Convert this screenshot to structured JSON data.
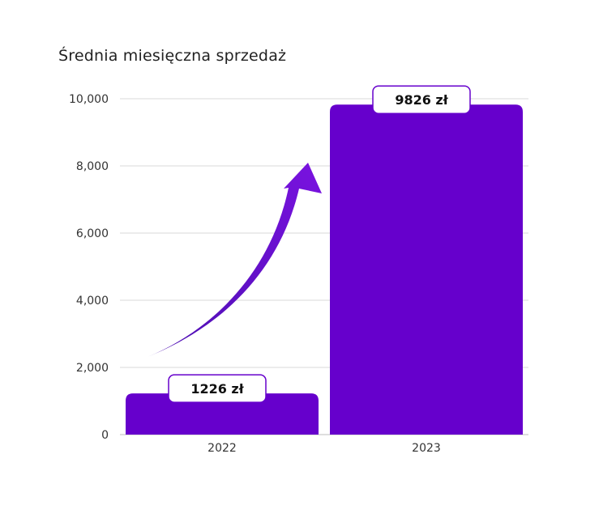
{
  "chart_data": {
    "type": "bar",
    "title": "Średnia miesięczna sprzedaż",
    "xlabel": "",
    "ylabel": "",
    "categories": [
      "2022",
      "2023"
    ],
    "values": [
      1226,
      9826
    ],
    "value_labels": [
      "1226 zł",
      "9826 zł"
    ],
    "ylim": [
      0,
      10000
    ],
    "yticks": [
      0,
      2000,
      4000,
      6000,
      8000,
      10000
    ],
    "ytick_labels": [
      "0",
      "2,000",
      "4,000",
      "6,000",
      "8,000",
      "10,000"
    ],
    "grid": true,
    "legend": "none",
    "annotation": "upward-growth-arrow"
  },
  "colors": {
    "bar": "#6600cc",
    "arrow": "#6a0ad0",
    "grid": "#d9d9d9",
    "axis": "#bdbdbd",
    "label_border": "#6600cc"
  }
}
